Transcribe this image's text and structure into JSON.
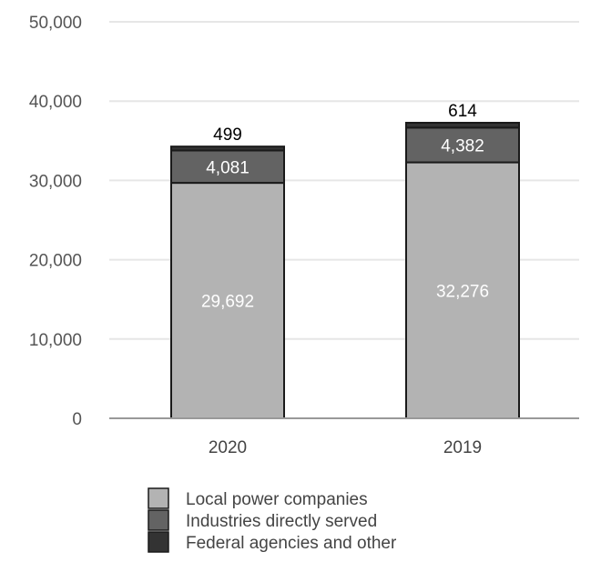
{
  "chart_data": {
    "type": "bar",
    "stacked": true,
    "categories": [
      "2020",
      "2019"
    ],
    "series": [
      {
        "name": "Local power companies",
        "values": [
          29692,
          32276
        ],
        "color": "#b3b3b3",
        "label_color": "#ffffff"
      },
      {
        "name": "Industries directly served",
        "values": [
          4081,
          4382
        ],
        "color": "#636363",
        "label_color": "#ffffff"
      },
      {
        "name": "Federal agencies and other",
        "values": [
          499,
          614
        ],
        "color": "#333333",
        "label_color": "#000000"
      }
    ],
    "data_labels": [
      [
        "29,692",
        "32,276"
      ],
      [
        "4,081",
        "4,382"
      ],
      [
        "499",
        "614"
      ]
    ],
    "ylim": [
      0,
      50000
    ],
    "yticks": [
      0,
      10000,
      20000,
      30000,
      40000,
      50000
    ],
    "ytick_labels": [
      "0",
      "10,000",
      "20,000",
      "30,000",
      "40,000",
      "50,000"
    ],
    "grid": true,
    "legend_position": "bottom",
    "title": "",
    "xlabel": "",
    "ylabel": ""
  }
}
